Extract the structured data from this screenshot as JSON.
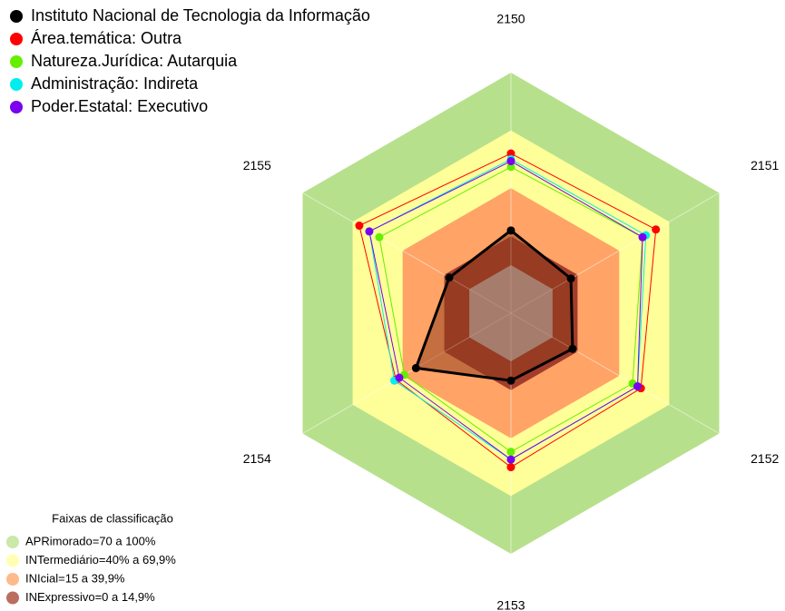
{
  "chart_data": {
    "type": "radar",
    "categories": [
      "2150",
      "2151",
      "2152",
      "2153",
      "2154",
      "2155"
    ],
    "ylim": [
      -25,
      100
    ],
    "series": [
      {
        "name": "Instituto Nacional de Tecnologia da Informação",
        "color": "#000000",
        "fill": true,
        "values": [
          18,
          11,
          12,
          10,
          32,
          12
        ]
      },
      {
        "name": "Área.temática: Outra",
        "color": "#ff0000",
        "values": [
          58,
          62,
          53,
          55,
          44,
          66
        ]
      },
      {
        "name": "Natureza.Jurídica: Autarquia",
        "color": "#66ee00",
        "values": [
          51,
          54,
          48,
          47,
          39,
          54
        ]
      },
      {
        "name": "Administração: Indireta",
        "color": "#00eeee",
        "values": [
          55,
          56,
          51,
          51,
          45,
          60
        ]
      },
      {
        "name": "Poder.Estatal: Executivo",
        "color": "#7a00ee",
        "values": [
          54,
          54,
          51,
          51,
          42,
          60
        ]
      }
    ],
    "bands_title": "Faixas de classificação",
    "bands": [
      {
        "name": "APRimorado=70 a 100%",
        "color": "#b7e08c",
        "range": [
          70,
          100
        ]
      },
      {
        "name": "INTermediário=40% a 69,9%",
        "color": "#ffff99",
        "range": [
          40,
          70
        ]
      },
      {
        "name": "INIcial=15 a 39,9%",
        "color": "#ffa366",
        "range": [
          15,
          40
        ]
      },
      {
        "name": "INExpressivo=0 a 14,9%",
        "color": "#a33d2b",
        "range": [
          0,
          15
        ]
      }
    ]
  }
}
